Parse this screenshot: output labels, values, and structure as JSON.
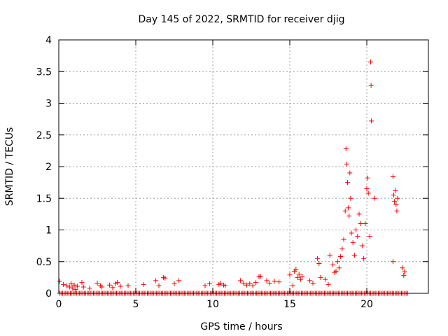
{
  "chart_data": {
    "type": "scatter",
    "title": "Day 145 of 2022, SRMTID for receiver djig",
    "xlabel": "GPS time / hours",
    "ylabel": "SRMTID / TECUs",
    "xlim": [
      0,
      24
    ],
    "ylim": [
      0,
      4
    ],
    "x_ticks": [
      0,
      5,
      10,
      15,
      20
    ],
    "x_tick_labels": [
      "0",
      "5",
      "10",
      "15",
      "20"
    ],
    "y_ticks": [
      0,
      0.5,
      1,
      1.5,
      2,
      2.5,
      3,
      3.5,
      4
    ],
    "y_tick_labels": [
      "0",
      "0.5",
      "1",
      "1.5",
      "2",
      "2.5",
      "3",
      "3.5",
      "4"
    ],
    "grid": true,
    "marker": "+",
    "color": "#ff0000",
    "baseline": {
      "x_start": 0.05,
      "x_end": 22.7,
      "x_step": 0.1,
      "y": 0.0
    },
    "series": [
      {
        "name": "SRMTID",
        "points": [
          [
            0.05,
            0.19
          ],
          [
            0.3,
            0.14
          ],
          [
            0.5,
            0.12
          ],
          [
            0.7,
            0.1
          ],
          [
            0.8,
            0.15
          ],
          [
            0.9,
            0.08
          ],
          [
            1.0,
            0.13
          ],
          [
            1.1,
            0.06
          ],
          [
            1.2,
            0.11
          ],
          [
            1.5,
            0.17
          ],
          [
            1.6,
            0.1
          ],
          [
            2.0,
            0.08
          ],
          [
            2.5,
            0.16
          ],
          [
            2.7,
            0.12
          ],
          [
            2.8,
            0.1
          ],
          [
            3.3,
            0.13
          ],
          [
            3.5,
            0.09
          ],
          [
            3.7,
            0.15
          ],
          [
            3.8,
            0.17
          ],
          [
            4.0,
            0.11
          ],
          [
            4.5,
            0.12
          ],
          [
            5.5,
            0.14
          ],
          [
            6.3,
            0.2
          ],
          [
            6.5,
            0.12
          ],
          [
            6.8,
            0.25
          ],
          [
            6.9,
            0.24
          ],
          [
            7.5,
            0.15
          ],
          [
            7.8,
            0.2
          ],
          [
            9.5,
            0.12
          ],
          [
            9.8,
            0.15
          ],
          [
            10.4,
            0.14
          ],
          [
            10.5,
            0.16
          ],
          [
            10.7,
            0.13
          ],
          [
            10.8,
            0.12
          ],
          [
            11.8,
            0.2
          ],
          [
            12.0,
            0.16
          ],
          [
            12.2,
            0.13
          ],
          [
            12.4,
            0.15
          ],
          [
            12.6,
            0.12
          ],
          [
            12.8,
            0.17
          ],
          [
            13.0,
            0.26
          ],
          [
            13.1,
            0.27
          ],
          [
            13.5,
            0.2
          ],
          [
            13.7,
            0.16
          ],
          [
            14.0,
            0.19
          ],
          [
            14.3,
            0.18
          ],
          [
            15.0,
            0.29
          ],
          [
            15.2,
            0.12
          ],
          [
            15.3,
            0.35
          ],
          [
            15.4,
            0.38
          ],
          [
            15.5,
            0.25
          ],
          [
            15.6,
            0.3
          ],
          [
            15.7,
            0.22
          ],
          [
            15.8,
            0.27
          ],
          [
            16.3,
            0.2
          ],
          [
            16.5,
            0.16
          ],
          [
            16.8,
            0.55
          ],
          [
            16.9,
            0.47
          ],
          [
            17.0,
            0.25
          ],
          [
            17.3,
            0.22
          ],
          [
            17.5,
            0.14
          ],
          [
            17.6,
            0.6
          ],
          [
            17.8,
            0.45
          ],
          [
            17.9,
            0.33
          ],
          [
            18.0,
            0.35
          ],
          [
            18.1,
            0.5
          ],
          [
            18.2,
            0.4
          ],
          [
            18.3,
            0.58
          ],
          [
            18.4,
            0.7
          ],
          [
            18.5,
            0.85
          ],
          [
            18.6,
            1.3
          ],
          [
            18.65,
            2.28
          ],
          [
            18.7,
            2.04
          ],
          [
            18.75,
            1.75
          ],
          [
            18.8,
            1.35
          ],
          [
            18.85,
            1.22
          ],
          [
            18.9,
            1.9
          ],
          [
            18.95,
            1.5
          ],
          [
            19.0,
            0.95
          ],
          [
            19.1,
            0.8
          ],
          [
            19.2,
            0.6
          ],
          [
            19.3,
            1.0
          ],
          [
            19.4,
            0.9
          ],
          [
            19.5,
            1.25
          ],
          [
            19.6,
            1.1
          ],
          [
            19.7,
            0.75
          ],
          [
            19.8,
            0.55
          ],
          [
            19.9,
            1.1
          ],
          [
            20.0,
            1.65
          ],
          [
            20.05,
            1.82
          ],
          [
            20.1,
            1.58
          ],
          [
            20.2,
            0.9
          ],
          [
            20.25,
            3.65
          ],
          [
            20.28,
            3.28
          ],
          [
            20.3,
            2.72
          ],
          [
            20.5,
            1.5
          ],
          [
            21.7,
            1.84
          ],
          [
            21.75,
            1.55
          ],
          [
            21.8,
            1.45
          ],
          [
            21.85,
            1.62
          ],
          [
            21.9,
            1.4
          ],
          [
            21.95,
            1.3
          ],
          [
            22.0,
            1.5
          ],
          [
            21.7,
            0.5
          ],
          [
            22.3,
            0.4
          ],
          [
            22.4,
            0.28
          ],
          [
            22.45,
            0.34
          ]
        ]
      }
    ]
  }
}
